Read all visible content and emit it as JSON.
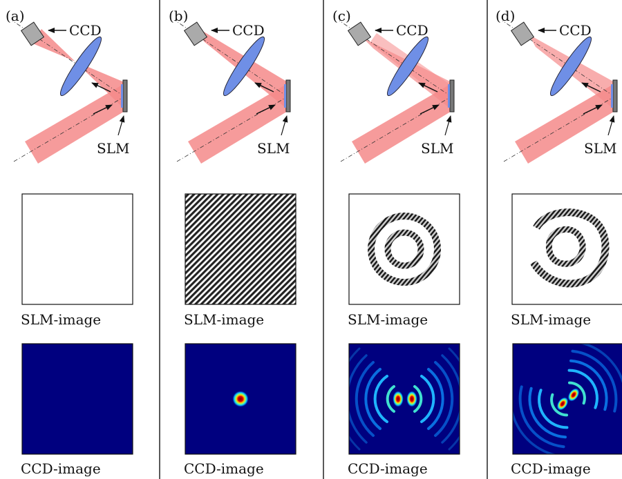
{
  "figure": {
    "annotations": {
      "ccd": "CCD",
      "slm": "SLM"
    },
    "panels": [
      {
        "label": "(a)",
        "slm_caption": "SLM-image",
        "ccd_caption": "CCD-image",
        "slm_pattern": "blank",
        "ccd_pattern": "empty"
      },
      {
        "label": "(b)",
        "slm_caption": "SLM-image",
        "ccd_caption": "CCD-image",
        "slm_pattern": "diagonal-grating",
        "ccd_pattern": "single-spot"
      },
      {
        "label": "(c)",
        "slm_caption": "SLM-image",
        "ccd_caption": "CCD-image",
        "slm_pattern": "concentric-rings",
        "ccd_pattern": "two-spots-horizontal"
      },
      {
        "label": "(d)",
        "slm_caption": "SLM-image",
        "ccd_caption": "CCD-image",
        "slm_pattern": "distorted-rings",
        "ccd_pattern": "two-spots-diagonal"
      }
    ],
    "colors": {
      "beam": "#f58a8a",
      "lens": "#6f8fe6",
      "colormap_background": "#00007f",
      "slm_frame": "#777777"
    }
  }
}
